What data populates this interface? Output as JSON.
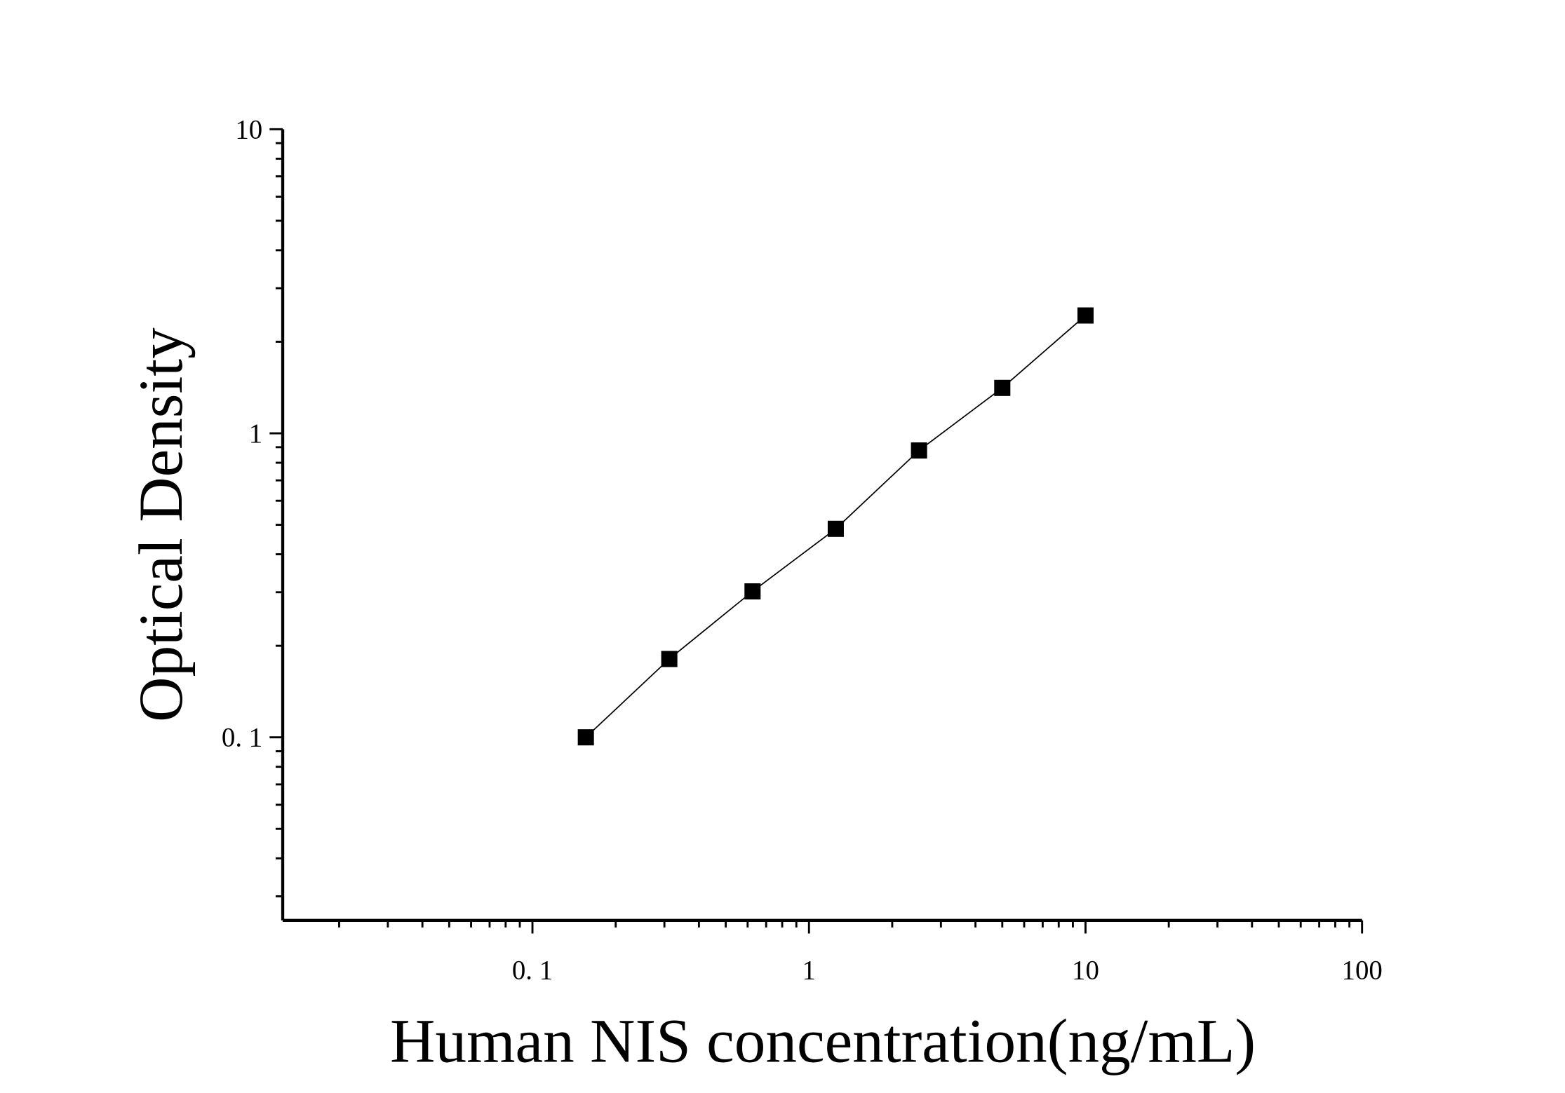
{
  "chart_data": {
    "type": "line",
    "x_label": "Human NIS concentration(ng/mL)",
    "y_label": "Optical Density",
    "x": [
      0.156,
      0.3125,
      0.625,
      1.25,
      2.5,
      5,
      10
    ],
    "series": [
      {
        "values": [
          0.1,
          0.181,
          0.302,
          0.485,
          0.878,
          1.41,
          2.44
        ],
        "color": "#000000"
      }
    ],
    "x_log": true,
    "y_log": true,
    "xlim": [
      0.0125,
      100
    ],
    "ylim": [
      0.025,
      10
    ],
    "xticks": [
      {
        "value": 0.1,
        "label": "0. 1"
      },
      1,
      10,
      100
    ],
    "yticks": [
      {
        "value": 0.1,
        "label": "0. 1"
      },
      1,
      10
    ]
  }
}
